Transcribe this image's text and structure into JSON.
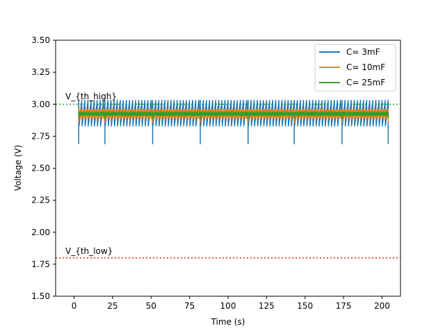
{
  "chart_data": {
    "type": "line",
    "title": "",
    "xlabel": "Time (s)",
    "ylabel": "Voltage (V)",
    "xlim": [
      -12,
      212
    ],
    "ylim": [
      1.5,
      3.5
    ],
    "xticks": [
      0,
      25,
      50,
      75,
      100,
      125,
      150,
      175,
      200
    ],
    "yticks": [
      1.5,
      1.75,
      2.0,
      2.25,
      2.5,
      2.75,
      3.0,
      3.25,
      3.5
    ],
    "xtick_labels": [
      "0",
      "25",
      "50",
      "75",
      "100",
      "125",
      "150",
      "175",
      "200"
    ],
    "ytick_labels": [
      "1.50",
      "1.75",
      "2.00",
      "2.25",
      "2.50",
      "2.75",
      "3.00",
      "3.25",
      "3.50"
    ],
    "grid": false,
    "legend_position": "top-right",
    "thresholds": [
      {
        "label": "V_{th_high}",
        "value": 3.0,
        "color": "#2ca02c"
      },
      {
        "label": "V_{th_low}",
        "value": 1.8,
        "color": "#d62728"
      }
    ],
    "burst_starts": [
      3,
      20,
      51,
      82,
      113,
      143,
      174,
      204
    ],
    "series": [
      {
        "name": "C= 3mF",
        "color": "#1f77b4",
        "high": 3.03,
        "low": 2.83,
        "dip": 2.69,
        "period": 2.0
      },
      {
        "name": "C= 10mF",
        "color": "#ff7f0e",
        "high": 2.96,
        "low": 2.89,
        "dip": 2.86,
        "period": 1.0
      },
      {
        "name": "C= 25mF",
        "color": "#2ca02c",
        "high": 2.94,
        "low": 2.91,
        "dip": 2.89,
        "period": 1.0
      }
    ]
  }
}
